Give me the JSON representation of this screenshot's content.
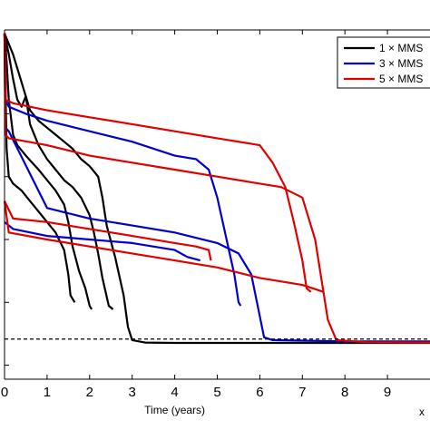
{
  "chart_data": {
    "type": "line",
    "title": "",
    "xlabel": "Time (years)",
    "ylabel": "",
    "x_exponent_label": "x",
    "xlim": [
      0,
      10
    ],
    "ylim": [
      0,
      1
    ],
    "xticks": [
      0,
      1,
      2,
      3,
      4,
      5,
      6,
      7,
      8,
      9
    ],
    "grid": false,
    "legend_position": "top-right",
    "reference_line": {
      "y": 0.115,
      "style": "dashed",
      "color": "#000000"
    },
    "series": [
      {
        "name": "1 × MMS",
        "color": "#000000",
        "curves": [
          [
            [
              0,
              0.99
            ],
            [
              0.2,
              0.93
            ],
            [
              0.4,
              0.85
            ],
            [
              0.6,
              0.77
            ],
            [
              0.8,
              0.74
            ],
            [
              1.0,
              0.72
            ],
            [
              1.2,
              0.7
            ],
            [
              1.4,
              0.68
            ],
            [
              1.6,
              0.66
            ],
            [
              1.8,
              0.63
            ],
            [
              2.0,
              0.61
            ],
            [
              2.2,
              0.58
            ],
            [
              2.3,
              0.52
            ],
            [
              2.4,
              0.44
            ],
            [
              2.6,
              0.35
            ],
            [
              2.8,
              0.24
            ],
            [
              2.9,
              0.15
            ],
            [
              3.0,
              0.112
            ],
            [
              3.3,
              0.105
            ],
            [
              4.0,
              0.104
            ],
            [
              6.0,
              0.104
            ],
            [
              10.0,
              0.104
            ]
          ],
          [
            [
              0,
              0.99
            ],
            [
              0.1,
              0.93
            ],
            [
              0.2,
              0.86
            ],
            [
              0.3,
              0.8
            ],
            [
              0.4,
              0.78
            ],
            [
              0.5,
              0.81
            ],
            [
              0.6,
              0.73
            ],
            [
              0.8,
              0.67
            ],
            [
              1.0,
              0.63
            ],
            [
              1.2,
              0.6
            ],
            [
              1.4,
              0.57
            ],
            [
              1.6,
              0.55
            ],
            [
              1.8,
              0.52
            ],
            [
              2.0,
              0.47
            ],
            [
              2.1,
              0.42
            ],
            [
              2.2,
              0.36
            ],
            [
              2.3,
              0.29
            ],
            [
              2.45,
              0.21
            ],
            [
              2.55,
              0.2
            ]
          ],
          [
            [
              0,
              0.99
            ],
            [
              0.05,
              0.91
            ],
            [
              0.1,
              0.8
            ],
            [
              0.2,
              0.7
            ],
            [
              0.3,
              0.67
            ],
            [
              0.5,
              0.64
            ],
            [
              0.8,
              0.6
            ],
            [
              1.0,
              0.57
            ],
            [
              1.2,
              0.54
            ],
            [
              1.4,
              0.5
            ],
            [
              1.5,
              0.45
            ],
            [
              1.6,
              0.38
            ],
            [
              1.75,
              0.31
            ],
            [
              1.9,
              0.26
            ],
            [
              2.0,
              0.21
            ],
            [
              2.05,
              0.2
            ]
          ],
          [
            [
              0,
              0.99
            ],
            [
              0.05,
              0.66
            ],
            [
              0.1,
              0.58
            ],
            [
              0.2,
              0.56
            ],
            [
              0.4,
              0.54
            ],
            [
              0.6,
              0.51
            ],
            [
              0.8,
              0.48
            ],
            [
              1.0,
              0.45
            ],
            [
              1.2,
              0.42
            ],
            [
              1.4,
              0.37
            ],
            [
              1.5,
              0.3
            ],
            [
              1.55,
              0.24
            ],
            [
              1.65,
              0.22
            ]
          ]
        ]
      },
      {
        "name": "3 × MMS",
        "color": "#0000cc",
        "curves": [
          [
            [
              0,
              0.99
            ],
            [
              0.03,
              0.8
            ],
            [
              0.1,
              0.78
            ],
            [
              0.5,
              0.76
            ],
            [
              1.0,
              0.74
            ],
            [
              2.0,
              0.71
            ],
            [
              3.0,
              0.68
            ],
            [
              4.0,
              0.64
            ],
            [
              4.5,
              0.63
            ],
            [
              4.8,
              0.6
            ],
            [
              5.0,
              0.52
            ],
            [
              5.2,
              0.41
            ],
            [
              5.4,
              0.3
            ],
            [
              5.5,
              0.22
            ],
            [
              5.55,
              0.21
            ]
          ],
          [
            [
              0,
              0.99
            ],
            [
              0.02,
              0.72
            ],
            [
              0.1,
              0.71
            ],
            [
              1.0,
              0.49
            ],
            [
              2.0,
              0.46
            ],
            [
              3.0,
              0.44
            ],
            [
              4.0,
              0.42
            ],
            [
              5.0,
              0.39
            ],
            [
              5.5,
              0.36
            ],
            [
              5.8,
              0.3
            ],
            [
              6.0,
              0.18
            ],
            [
              6.1,
              0.12
            ],
            [
              6.3,
              0.112
            ],
            [
              8.0,
              0.108
            ],
            [
              10.0,
              0.108
            ]
          ],
          [
            [
              0,
              0.45
            ],
            [
              0.2,
              0.43
            ],
            [
              1.0,
              0.41
            ],
            [
              2.0,
              0.4
            ],
            [
              3.0,
              0.39
            ],
            [
              4.0,
              0.37
            ],
            [
              4.3,
              0.35
            ],
            [
              4.6,
              0.34
            ]
          ]
        ]
      },
      {
        "name": "5 × MMS",
        "color": "#e00000",
        "curves": [
          [
            [
              0,
              0.99
            ],
            [
              0.03,
              0.8
            ],
            [
              0.2,
              0.79
            ],
            [
              1.0,
              0.77
            ],
            [
              2.0,
              0.75
            ],
            [
              3.0,
              0.73
            ],
            [
              4.0,
              0.71
            ],
            [
              5.0,
              0.69
            ],
            [
              6.0,
              0.67
            ],
            [
              6.3,
              0.62
            ],
            [
              6.6,
              0.55
            ],
            [
              6.8,
              0.45
            ],
            [
              7.0,
              0.34
            ],
            [
              7.1,
              0.26
            ],
            [
              7.2,
              0.25
            ]
          ],
          [
            [
              0,
              0.99
            ],
            [
              0.02,
              0.7
            ],
            [
              0.1,
              0.69
            ],
            [
              1.0,
              0.67
            ],
            [
              2.0,
              0.64
            ],
            [
              3.0,
              0.62
            ],
            [
              4.0,
              0.6
            ],
            [
              5.0,
              0.58
            ],
            [
              6.0,
              0.56
            ],
            [
              6.5,
              0.55
            ],
            [
              7.0,
              0.52
            ],
            [
              7.3,
              0.4
            ],
            [
              7.6,
              0.17
            ],
            [
              7.8,
              0.112
            ],
            [
              8.5,
              0.106
            ],
            [
              10.0,
              0.105
            ]
          ],
          [
            [
              0,
              0.51
            ],
            [
              0.2,
              0.46
            ],
            [
              1.0,
              0.45
            ],
            [
              2.0,
              0.43
            ],
            [
              3.0,
              0.41
            ],
            [
              4.0,
              0.39
            ],
            [
              4.5,
              0.38
            ],
            [
              4.8,
              0.37
            ],
            [
              4.85,
              0.34
            ]
          ],
          [
            [
              0,
              0.51
            ],
            [
              0.1,
              0.42
            ],
            [
              1.0,
              0.4
            ],
            [
              2.0,
              0.38
            ],
            [
              3.0,
              0.36
            ],
            [
              4.0,
              0.34
            ],
            [
              5.0,
              0.32
            ],
            [
              6.0,
              0.29
            ],
            [
              7.0,
              0.27
            ],
            [
              7.5,
              0.25
            ]
          ]
        ]
      }
    ]
  }
}
